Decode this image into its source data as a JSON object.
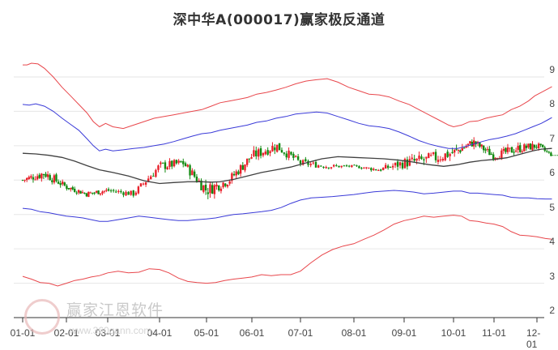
{
  "title": "深中华A(000017)赢家极反通道",
  "watermark": {
    "text": "赢家江恩软件",
    "url": "www.360gann.com"
  },
  "colors": {
    "outer_band": "#e8474c",
    "inner_band": "#3a3ad8",
    "mid_line": "#404040",
    "up_candle": "#e8202a",
    "down_candle": "#118a11",
    "projection": "#2e9a2e",
    "grid": "#e6e6e6"
  },
  "chart_data": {
    "type": "line",
    "title": "深中华A(000017)赢家极反通道",
    "xlabel": "",
    "ylabel": "",
    "ylim": [
      2,
      9.6
    ],
    "y_ticks": [
      2,
      3,
      4,
      5,
      6,
      7,
      8,
      9
    ],
    "x_ticks": [
      "01-01",
      "02-01",
      "03-01",
      "04-01",
      "05-01",
      "06-01",
      "07-01",
      "08-01",
      "09-01",
      "10-01",
      "11-01",
      "12-01"
    ],
    "grid": true,
    "legend": "none",
    "series": [
      {
        "name": "outer_upper",
        "color": "#e8474c",
        "points": [
          [
            0,
            9.35
          ],
          [
            0.1,
            9.35
          ],
          [
            0.2,
            9.4
          ],
          [
            0.35,
            9.38
          ],
          [
            0.5,
            9.25
          ],
          [
            0.7,
            9.0
          ],
          [
            0.9,
            8.7
          ],
          [
            1.1,
            8.45
          ],
          [
            1.3,
            8.2
          ],
          [
            1.5,
            7.95
          ],
          [
            1.65,
            7.7
          ],
          [
            1.8,
            7.55
          ],
          [
            1.95,
            7.65
          ],
          [
            2.1,
            7.55
          ],
          [
            2.3,
            7.5
          ],
          [
            2.5,
            7.6
          ],
          [
            2.7,
            7.7
          ],
          [
            2.9,
            7.8
          ],
          [
            3.1,
            7.85
          ],
          [
            3.3,
            7.9
          ],
          [
            3.5,
            7.95
          ],
          [
            3.7,
            8.0
          ],
          [
            3.9,
            8.05
          ],
          [
            4.1,
            8.15
          ],
          [
            4.3,
            8.25
          ],
          [
            4.5,
            8.3
          ],
          [
            4.7,
            8.35
          ],
          [
            4.9,
            8.4
          ],
          [
            5.1,
            8.5
          ],
          [
            5.3,
            8.55
          ],
          [
            5.5,
            8.62
          ],
          [
            5.7,
            8.7
          ],
          [
            5.9,
            8.8
          ],
          [
            6.1,
            8.88
          ],
          [
            6.3,
            8.92
          ],
          [
            6.5,
            8.95
          ],
          [
            6.7,
            8.85
          ],
          [
            6.9,
            8.7
          ],
          [
            7.1,
            8.6
          ],
          [
            7.3,
            8.5
          ],
          [
            7.5,
            8.48
          ],
          [
            7.7,
            8.42
          ],
          [
            7.9,
            8.3
          ],
          [
            8.1,
            8.2
          ],
          [
            8.3,
            8.05
          ],
          [
            8.5,
            7.9
          ],
          [
            8.7,
            7.75
          ],
          [
            8.9,
            7.6
          ],
          [
            9.0,
            7.55
          ],
          [
            9.2,
            7.6
          ],
          [
            9.4,
            7.7
          ],
          [
            9.6,
            7.72
          ],
          [
            9.8,
            7.8
          ],
          [
            10.0,
            7.85
          ],
          [
            10.2,
            7.9
          ],
          [
            10.4,
            8.05
          ],
          [
            10.6,
            8.15
          ],
          [
            10.8,
            8.3
          ],
          [
            10.95,
            8.45
          ],
          [
            11.1,
            8.55
          ],
          [
            11.25,
            8.65
          ],
          [
            11.35,
            8.72
          ]
        ]
      },
      {
        "name": "inner_upper",
        "color": "#3a3ad8",
        "points": [
          [
            0,
            8.2
          ],
          [
            0.15,
            8.18
          ],
          [
            0.3,
            8.22
          ],
          [
            0.5,
            8.15
          ],
          [
            0.7,
            8.0
          ],
          [
            0.9,
            7.8
          ],
          [
            1.1,
            7.62
          ],
          [
            1.3,
            7.45
          ],
          [
            1.5,
            7.2
          ],
          [
            1.65,
            7.0
          ],
          [
            1.8,
            6.85
          ],
          [
            1.95,
            6.9
          ],
          [
            2.1,
            6.85
          ],
          [
            2.3,
            6.88
          ],
          [
            2.5,
            6.92
          ],
          [
            2.7,
            6.95
          ],
          [
            2.9,
            7.0
          ],
          [
            3.1,
            7.05
          ],
          [
            3.3,
            7.12
          ],
          [
            3.5,
            7.2
          ],
          [
            3.7,
            7.28
          ],
          [
            3.9,
            7.35
          ],
          [
            4.1,
            7.38
          ],
          [
            4.3,
            7.45
          ],
          [
            4.5,
            7.5
          ],
          [
            4.7,
            7.55
          ],
          [
            4.9,
            7.6
          ],
          [
            5.1,
            7.68
          ],
          [
            5.3,
            7.72
          ],
          [
            5.5,
            7.8
          ],
          [
            5.7,
            7.85
          ],
          [
            5.9,
            7.92
          ],
          [
            6.1,
            7.95
          ],
          [
            6.3,
            7.98
          ],
          [
            6.5,
            7.95
          ],
          [
            6.7,
            7.85
          ],
          [
            6.9,
            7.75
          ],
          [
            7.1,
            7.65
          ],
          [
            7.3,
            7.58
          ],
          [
            7.5,
            7.55
          ],
          [
            7.7,
            7.5
          ],
          [
            7.9,
            7.4
          ],
          [
            8.1,
            7.28
          ],
          [
            8.3,
            7.15
          ],
          [
            8.5,
            7.05
          ],
          [
            8.7,
            6.98
          ],
          [
            8.9,
            6.92
          ],
          [
            9.1,
            6.92
          ],
          [
            9.3,
            6.98
          ],
          [
            9.5,
            7.05
          ],
          [
            9.7,
            7.12
          ],
          [
            9.9,
            7.18
          ],
          [
            10.1,
            7.22
          ],
          [
            10.3,
            7.28
          ],
          [
            10.5,
            7.35
          ],
          [
            10.7,
            7.45
          ],
          [
            10.9,
            7.55
          ],
          [
            11.1,
            7.65
          ],
          [
            11.25,
            7.75
          ],
          [
            11.35,
            7.82
          ]
        ]
      },
      {
        "name": "mid_line",
        "color": "#404040",
        "points": [
          [
            0,
            6.78
          ],
          [
            0.3,
            6.76
          ],
          [
            0.6,
            6.72
          ],
          [
            0.9,
            6.66
          ],
          [
            1.2,
            6.55
          ],
          [
            1.5,
            6.42
          ],
          [
            1.8,
            6.3
          ],
          [
            2.1,
            6.22
          ],
          [
            2.4,
            6.12
          ],
          [
            2.7,
            5.98
          ],
          [
            3.0,
            5.9
          ],
          [
            3.3,
            5.93
          ],
          [
            3.6,
            5.95
          ],
          [
            3.9,
            5.95
          ],
          [
            4.1,
            5.94
          ],
          [
            4.3,
            5.95
          ],
          [
            4.6,
            6.02
          ],
          [
            4.9,
            6.12
          ],
          [
            5.2,
            6.22
          ],
          [
            5.5,
            6.3
          ],
          [
            5.8,
            6.38
          ],
          [
            6.1,
            6.5
          ],
          [
            6.4,
            6.62
          ],
          [
            6.7,
            6.68
          ],
          [
            7.0,
            6.66
          ],
          [
            7.3,
            6.64
          ],
          [
            7.6,
            6.62
          ],
          [
            7.9,
            6.58
          ],
          [
            8.2,
            6.52
          ],
          [
            8.5,
            6.45
          ],
          [
            8.8,
            6.4
          ],
          [
            9.1,
            6.45
          ],
          [
            9.4,
            6.52
          ],
          [
            9.7,
            6.57
          ],
          [
            10.0,
            6.6
          ],
          [
            10.3,
            6.65
          ],
          [
            10.6,
            6.75
          ],
          [
            10.9,
            6.85
          ],
          [
            11.1,
            6.9
          ],
          [
            11.35,
            6.92
          ]
        ]
      },
      {
        "name": "inner_lower",
        "color": "#3a3ad8",
        "points": [
          [
            0,
            5.18
          ],
          [
            0.2,
            5.15
          ],
          [
            0.4,
            5.08
          ],
          [
            0.6,
            5.05
          ],
          [
            0.8,
            5.0
          ],
          [
            1.0,
            4.95
          ],
          [
            1.2,
            4.93
          ],
          [
            1.4,
            4.9
          ],
          [
            1.6,
            4.85
          ],
          [
            1.8,
            4.8
          ],
          [
            2.0,
            4.8
          ],
          [
            2.2,
            4.85
          ],
          [
            2.4,
            4.9
          ],
          [
            2.6,
            4.95
          ],
          [
            2.8,
            4.92
          ],
          [
            3.0,
            4.88
          ],
          [
            3.2,
            4.85
          ],
          [
            3.4,
            4.82
          ],
          [
            3.6,
            4.82
          ],
          [
            3.8,
            4.85
          ],
          [
            4.0,
            4.87
          ],
          [
            4.2,
            4.9
          ],
          [
            4.4,
            4.95
          ],
          [
            4.6,
            5.0
          ],
          [
            4.8,
            5.02
          ],
          [
            5.0,
            5.05
          ],
          [
            5.2,
            5.08
          ],
          [
            5.4,
            5.12
          ],
          [
            5.6,
            5.2
          ],
          [
            5.8,
            5.32
          ],
          [
            6.0,
            5.42
          ],
          [
            6.2,
            5.48
          ],
          [
            6.4,
            5.5
          ],
          [
            6.6,
            5.52
          ],
          [
            6.8,
            5.55
          ],
          [
            7.0,
            5.58
          ],
          [
            7.2,
            5.62
          ],
          [
            7.4,
            5.66
          ],
          [
            7.6,
            5.68
          ],
          [
            7.8,
            5.7
          ],
          [
            8.0,
            5.68
          ],
          [
            8.2,
            5.65
          ],
          [
            8.4,
            5.6
          ],
          [
            8.6,
            5.62
          ],
          [
            8.8,
            5.65
          ],
          [
            9.0,
            5.68
          ],
          [
            9.2,
            5.68
          ],
          [
            9.4,
            5.62
          ],
          [
            9.6,
            5.62
          ],
          [
            9.8,
            5.6
          ],
          [
            10.0,
            5.58
          ],
          [
            10.2,
            5.56
          ],
          [
            10.4,
            5.5
          ],
          [
            10.6,
            5.48
          ],
          [
            10.8,
            5.48
          ],
          [
            11.0,
            5.46
          ],
          [
            11.2,
            5.45
          ],
          [
            11.35,
            5.45
          ]
        ]
      },
      {
        "name": "outer_lower",
        "color": "#e8474c",
        "points": [
          [
            0,
            3.2
          ],
          [
            0.2,
            3.12
          ],
          [
            0.4,
            3.02
          ],
          [
            0.6,
            3.0
          ],
          [
            0.8,
            2.92
          ],
          [
            1.0,
            3.0
          ],
          [
            1.2,
            3.08
          ],
          [
            1.4,
            3.12
          ],
          [
            1.6,
            3.18
          ],
          [
            1.8,
            3.22
          ],
          [
            2.0,
            3.3
          ],
          [
            2.2,
            3.35
          ],
          [
            2.4,
            3.3
          ],
          [
            2.6,
            3.32
          ],
          [
            2.8,
            3.42
          ],
          [
            3.0,
            3.4
          ],
          [
            3.2,
            3.3
          ],
          [
            3.4,
            3.15
          ],
          [
            3.6,
            3.05
          ],
          [
            3.8,
            3.02
          ],
          [
            4.0,
            3.0
          ],
          [
            4.2,
            3.02
          ],
          [
            4.4,
            3.08
          ],
          [
            4.6,
            3.12
          ],
          [
            4.8,
            3.15
          ],
          [
            5.0,
            3.18
          ],
          [
            5.2,
            3.25
          ],
          [
            5.4,
            3.22
          ],
          [
            5.6,
            3.25
          ],
          [
            5.8,
            3.25
          ],
          [
            6.0,
            3.35
          ],
          [
            6.2,
            3.6
          ],
          [
            6.4,
            3.82
          ],
          [
            6.6,
            3.98
          ],
          [
            6.8,
            4.08
          ],
          [
            7.0,
            4.15
          ],
          [
            7.2,
            4.28
          ],
          [
            7.4,
            4.4
          ],
          [
            7.6,
            4.55
          ],
          [
            7.8,
            4.72
          ],
          [
            8.0,
            4.82
          ],
          [
            8.2,
            4.88
          ],
          [
            8.4,
            4.95
          ],
          [
            8.6,
            4.92
          ],
          [
            8.8,
            4.95
          ],
          [
            9.0,
            4.98
          ],
          [
            9.2,
            4.95
          ],
          [
            9.4,
            4.82
          ],
          [
            9.6,
            4.8
          ],
          [
            9.8,
            4.75
          ],
          [
            10.0,
            4.72
          ],
          [
            10.2,
            4.65
          ],
          [
            10.4,
            4.5
          ],
          [
            10.6,
            4.4
          ],
          [
            10.8,
            4.38
          ],
          [
            11.0,
            4.35
          ],
          [
            11.2,
            4.3
          ],
          [
            11.35,
            4.28
          ]
        ]
      },
      {
        "name": "projection",
        "color": "#2e9a2e",
        "style": "dashed",
        "points": [
          [
            11.35,
            6.72
          ],
          [
            12.2,
            6.72
          ]
        ]
      }
    ],
    "candles_summary": {
      "note": "Daily OHLC candles (red=up, green=down); approximate close values by month",
      "x": [
        0,
        0.5,
        1,
        1.5,
        2,
        2.5,
        3,
        3.5,
        4,
        4.5,
        5,
        5.5,
        6,
        6.5,
        7,
        7.5,
        8,
        8.5,
        9,
        9.5,
        10,
        10.5,
        11,
        11.35
      ],
      "close": [
        6.0,
        6.2,
        5.8,
        5.6,
        5.7,
        5.6,
        6.4,
        6.5,
        5.7,
        6.0,
        6.7,
        7.0,
        6.5,
        6.4,
        6.4,
        6.3,
        6.5,
        6.6,
        6.8,
        7.1,
        6.7,
        6.9,
        7.0,
        6.72
      ],
      "high": [
        6.3,
        6.7,
        6.1,
        5.8,
        5.9,
        6.0,
        6.7,
        6.8,
        6.0,
        6.5,
        7.2,
        7.6,
        6.8,
        6.6,
        6.5,
        6.5,
        7.2,
        7.5,
        7.3,
        7.2,
        7.1,
        7.4,
        7.3,
        6.9
      ],
      "low": [
        5.8,
        5.8,
        5.6,
        5.3,
        5.5,
        5.5,
        5.9,
        6.1,
        4.9,
        5.7,
        6.3,
        6.7,
        6.2,
        6.2,
        6.3,
        6.1,
        6.3,
        6.4,
        6.3,
        6.5,
        6.5,
        6.6,
        6.7,
        6.65
      ]
    }
  }
}
